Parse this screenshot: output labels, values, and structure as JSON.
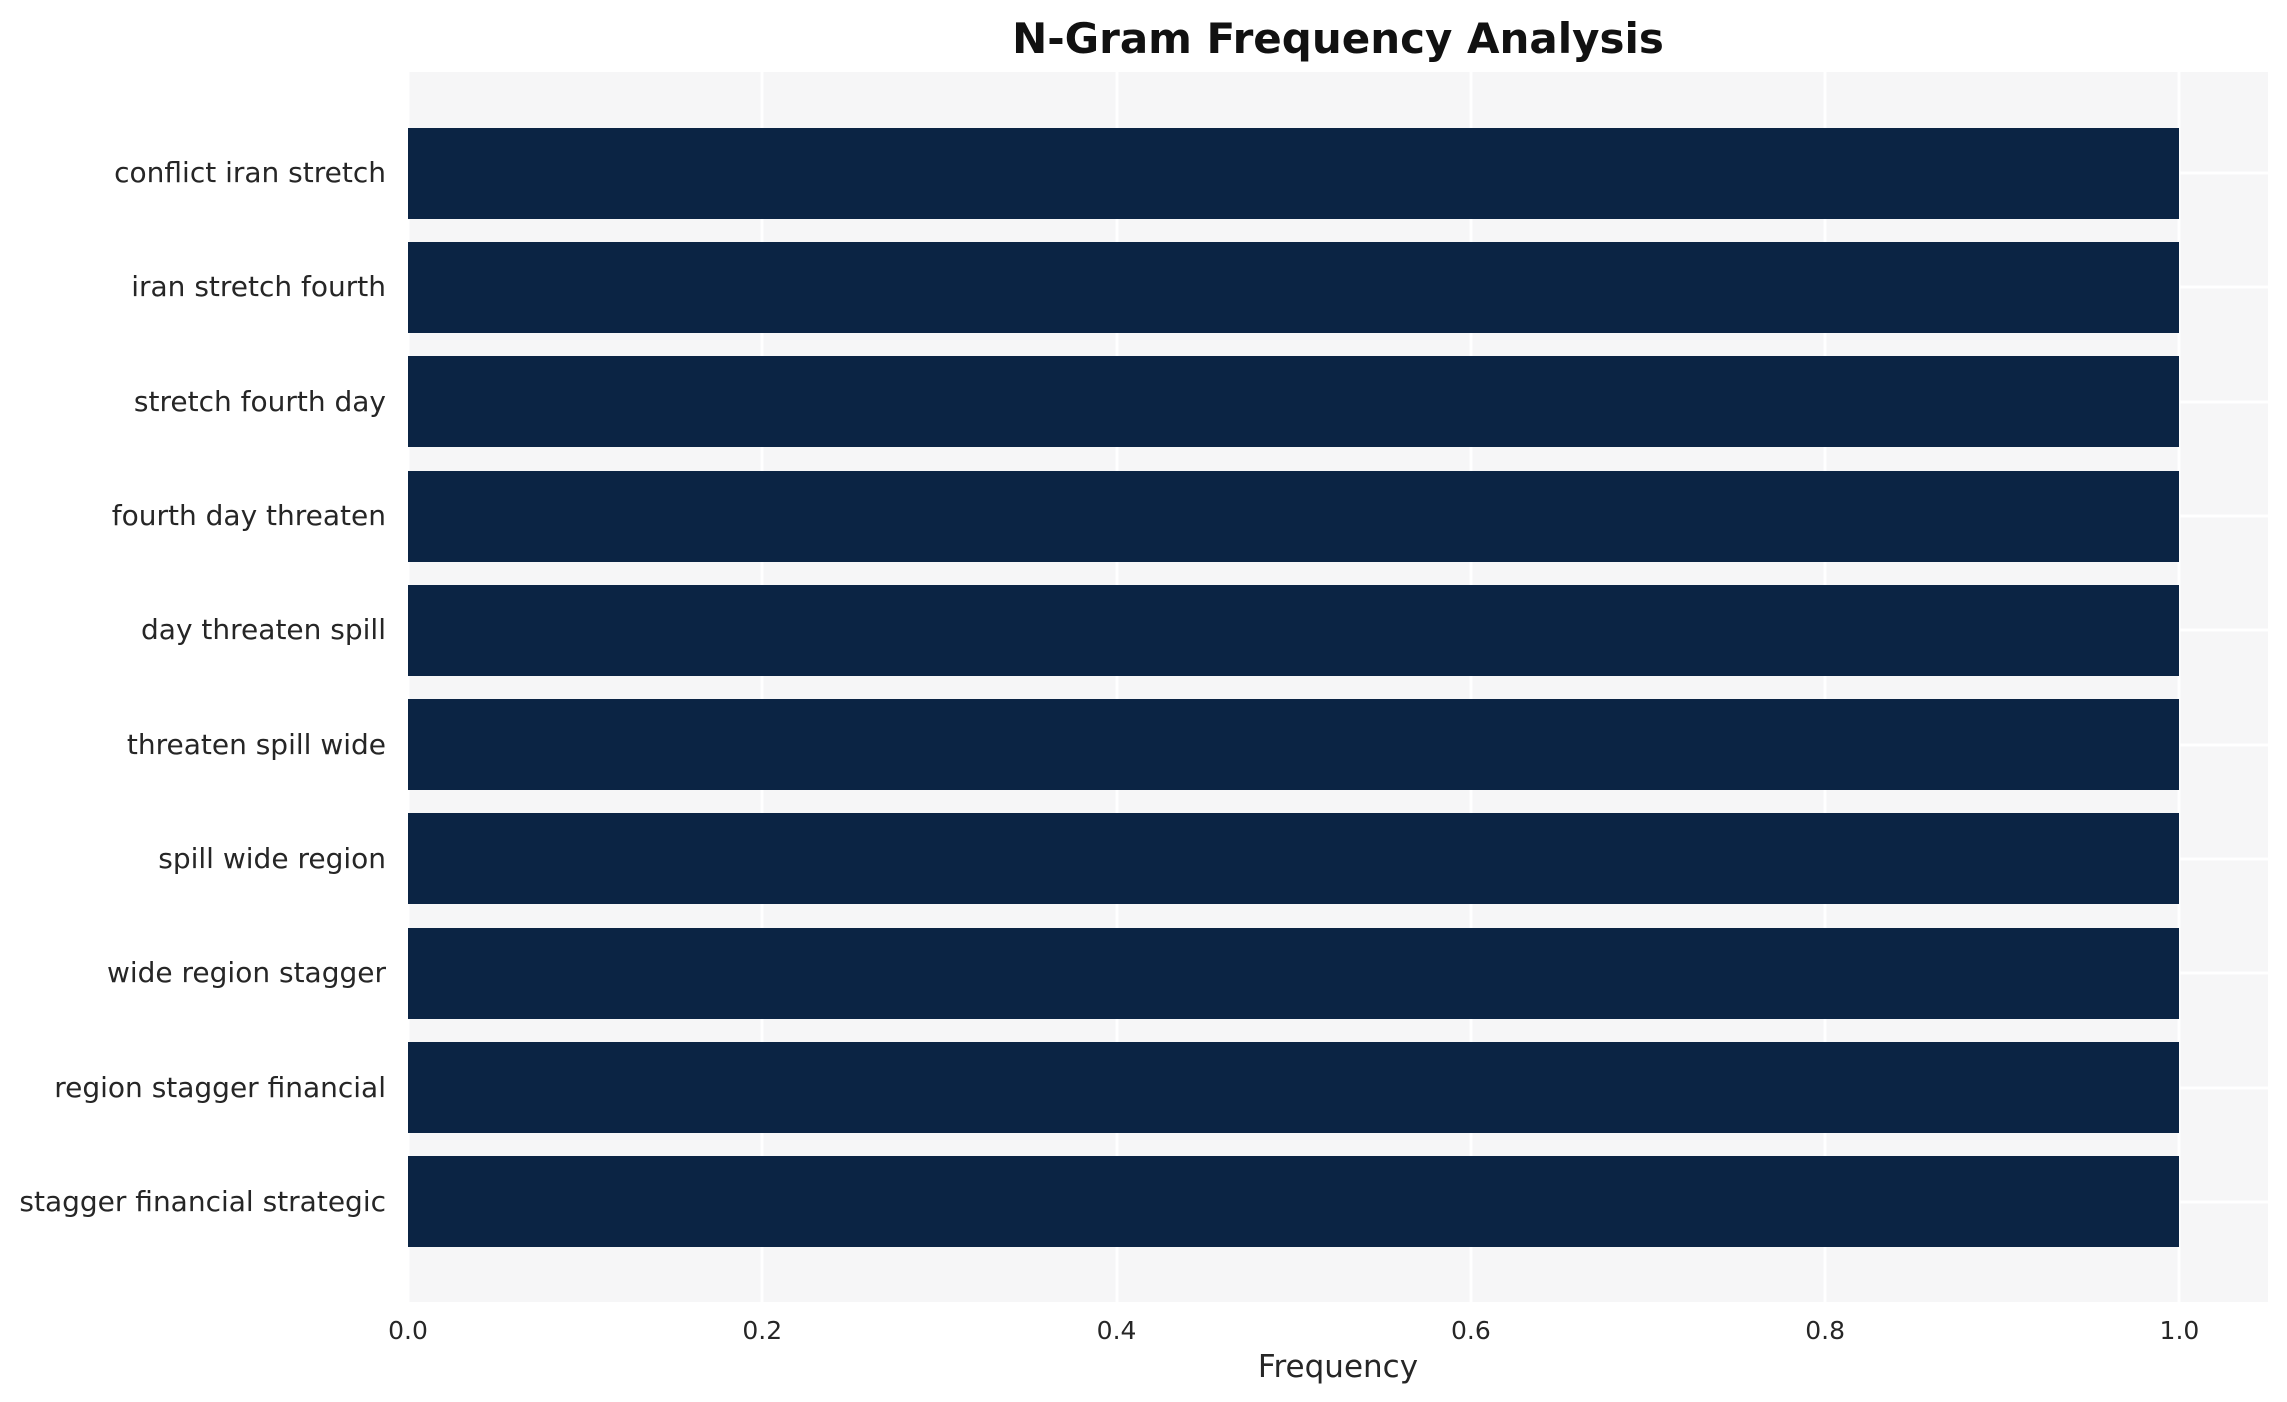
{
  "chart_data": {
    "type": "bar",
    "orientation": "horizontal",
    "title": "N-Gram Frequency Analysis",
    "xlabel": "Frequency",
    "ylabel": "",
    "categories": [
      "conflict iran stretch",
      "iran stretch fourth",
      "stretch fourth day",
      "fourth day threaten",
      "day threaten spill",
      "threaten spill wide",
      "spill wide region",
      "wide region stagger",
      "region stagger financial",
      "stagger financial strategic"
    ],
    "values": [
      1.0,
      1.0,
      1.0,
      1.0,
      1.0,
      1.0,
      1.0,
      1.0,
      1.0,
      1.0
    ],
    "xlim": [
      0,
      1.05
    ],
    "xticks": [
      0.0,
      0.2,
      0.4,
      0.6,
      0.8,
      1.0
    ],
    "xtick_labels": [
      "0.0",
      "0.2",
      "0.4",
      "0.6",
      "0.8",
      "1.0"
    ],
    "grid": true,
    "legend": false,
    "colors": {
      "bar": "#0b2444",
      "plot_bg": "#f6f6f7",
      "grid": "#ffffff",
      "text": "#262626",
      "title_text": "#111111",
      "figure_bg": "#ffffff"
    }
  }
}
